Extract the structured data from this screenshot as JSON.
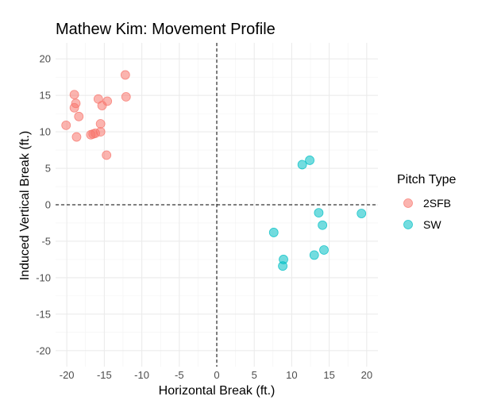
{
  "chart_data": {
    "type": "scatter",
    "title": "Mathew Kim: Movement Profile",
    "xlabel": "Horizontal Break (ft.)",
    "ylabel": "Induced Vertical Break (ft.)",
    "xlim": [
      -21.5,
      21.5
    ],
    "ylim": [
      -22.2,
      22.2
    ],
    "x_ticks": [
      -20,
      -15,
      -10,
      -5,
      0,
      5,
      10,
      15,
      20
    ],
    "y_ticks": [
      -20,
      -15,
      -10,
      -5,
      0,
      5,
      10,
      15,
      20
    ],
    "grid": true,
    "reference_lines": {
      "x": 0,
      "y": 0,
      "style": "dashed"
    },
    "legend": {
      "title": "Pitch Type",
      "placement": "right"
    },
    "series": [
      {
        "name": "2SFB",
        "color": "#f8766d",
        "points": [
          [
            -12.2,
            17.8
          ],
          [
            -19.0,
            15.1
          ],
          [
            -15.8,
            14.5
          ],
          [
            -14.6,
            14.2
          ],
          [
            -12.1,
            14.8
          ],
          [
            -18.8,
            13.9
          ],
          [
            -15.3,
            13.6
          ],
          [
            -19.0,
            13.3
          ],
          [
            -18.4,
            12.1
          ],
          [
            -15.5,
            11.1
          ],
          [
            -20.1,
            10.9
          ],
          [
            -15.5,
            10.0
          ],
          [
            -16.2,
            9.8
          ],
          [
            -16.5,
            9.7
          ],
          [
            -16.8,
            9.6
          ],
          [
            -18.7,
            9.3
          ],
          [
            -14.7,
            6.8
          ]
        ]
      },
      {
        "name": "SW",
        "color": "#00bfc4",
        "points": [
          [
            12.4,
            6.1
          ],
          [
            11.4,
            5.5
          ],
          [
            13.6,
            -1.1
          ],
          [
            19.3,
            -1.2
          ],
          [
            14.1,
            -2.8
          ],
          [
            7.6,
            -3.8
          ],
          [
            14.3,
            -6.2
          ],
          [
            13.0,
            -6.9
          ],
          [
            8.9,
            -7.5
          ],
          [
            8.8,
            -8.4
          ]
        ]
      }
    ]
  }
}
